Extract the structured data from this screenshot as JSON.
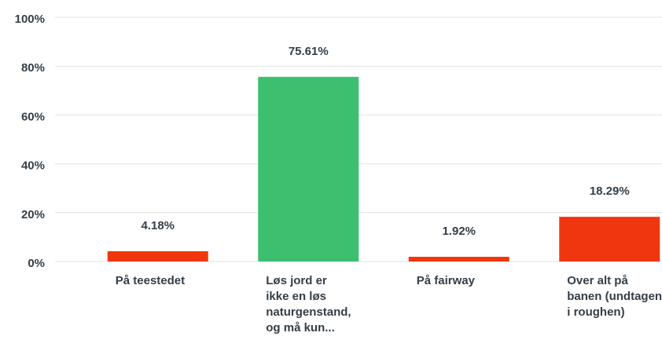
{
  "chart_data": {
    "type": "bar",
    "categories": [
      [
        "På teestedet"
      ],
      [
        "Løs jord er",
        "ikke en løs",
        "naturgenstand,",
        "og må kun..."
      ],
      [
        "På fairway"
      ],
      [
        "Over alt på",
        "banen (undtagen",
        "i roughen)"
      ]
    ],
    "values": [
      4.18,
      75.61,
      1.92,
      18.29
    ],
    "value_labels": [
      "4.18%",
      "75.61%",
      "1.92%",
      "18.29%"
    ],
    "colors": [
      "#f0360e",
      "#3cbf6e",
      "#f0360e",
      "#f0360e"
    ],
    "ylim": [
      0,
      100
    ],
    "yticks": [
      {
        "value": 0,
        "label": "0%"
      },
      {
        "value": 20,
        "label": "20%"
      },
      {
        "value": 40,
        "label": "40%"
      },
      {
        "value": 60,
        "label": "60%"
      },
      {
        "value": 80,
        "label": "80%"
      },
      {
        "value": 100,
        "label": "100%"
      }
    ],
    "grid": true
  }
}
